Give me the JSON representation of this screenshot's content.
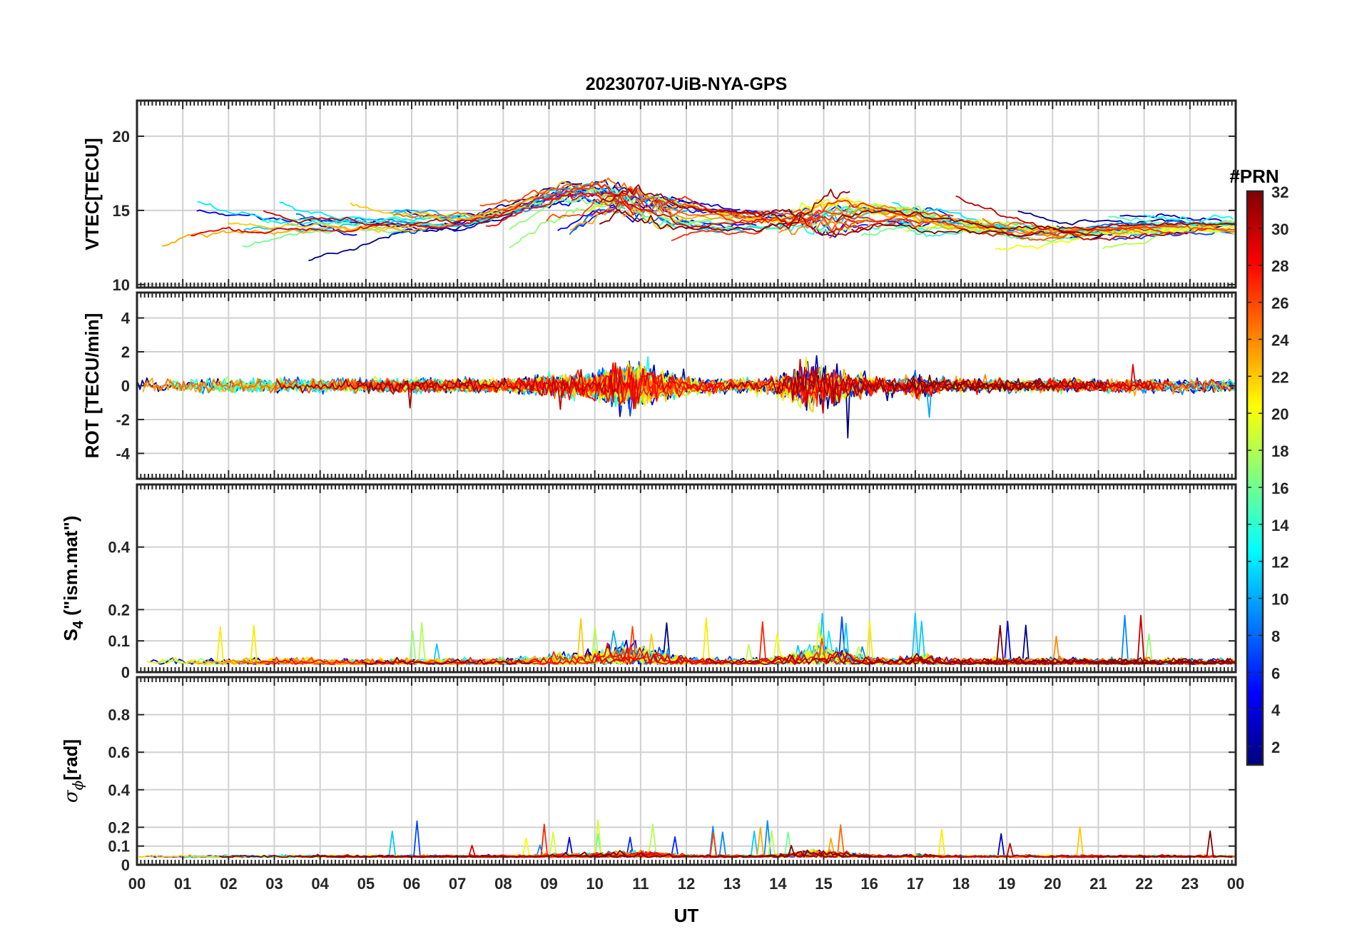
{
  "chart_data": {
    "type": "line",
    "title": "20230707-UiB-NYA-GPS",
    "xlabel": "UT",
    "x_tick_labels": [
      "00",
      "01",
      "02",
      "03",
      "04",
      "05",
      "06",
      "07",
      "08",
      "09",
      "10",
      "11",
      "12",
      "13",
      "14",
      "15",
      "16",
      "17",
      "18",
      "19",
      "20",
      "21",
      "22",
      "23",
      "00"
    ],
    "xlim_hours": [
      0,
      24
    ],
    "grid": true,
    "colorbar": {
      "title": "#PRN",
      "colormap": "jet",
      "range": [
        1,
        32
      ],
      "tick_labels": [
        "2",
        "4",
        "6",
        "8",
        "10",
        "12",
        "14",
        "16",
        "18",
        "20",
        "22",
        "24",
        "26",
        "28",
        "30",
        "32"
      ]
    },
    "panels": [
      {
        "name": "vtec",
        "ylabel_main": "VTEC[TECU]",
        "ylim": [
          9.8,
          22.4
        ],
        "y_tick_labels": [
          "10",
          "15",
          "20"
        ],
        "y_ticks": [
          10,
          15,
          20
        ],
        "baseline": 14.2,
        "spread": 1.3,
        "profile": "vtec"
      },
      {
        "name": "rot",
        "ylabel_main": "ROT [TECU/min]",
        "ylim": [
          -5.5,
          5.5
        ],
        "y_tick_labels": [
          "-4",
          "-2",
          "0",
          "2",
          "4"
        ],
        "y_ticks": [
          -4,
          -2,
          0,
          2,
          4
        ],
        "baseline": 0,
        "spread": 0.45,
        "profile": "rot"
      },
      {
        "name": "s4",
        "ylabel_main": "S",
        "ylabel_sub": "4",
        "ylabel_rest": " (\"ism.mat\")",
        "ylim": [
          0,
          0.6
        ],
        "y_tick_labels": [
          "0",
          "0.1",
          "0.2",
          "0.4"
        ],
        "y_ticks": [
          0,
          0.1,
          0.2,
          0.4
        ],
        "baseline": 0.025,
        "spread": 0.02,
        "profile": "s4"
      },
      {
        "name": "sigma-phi",
        "ylabel_symbol": "σ",
        "ylabel_sub": "ϕ",
        "ylabel_rest": "[rad]",
        "ylim": [
          0,
          1
        ],
        "y_tick_labels": [
          "0",
          "0.1",
          "0.2",
          "0.4",
          "0.6",
          "0.8"
        ],
        "y_ticks": [
          0,
          0.1,
          0.2,
          0.4,
          0.6,
          0.8
        ],
        "baseline": 0.04,
        "spread": 0.012,
        "profile": "sigma"
      }
    ],
    "satellites": [
      1,
      2,
      3,
      4,
      5,
      6,
      7,
      8,
      9,
      10,
      11,
      12,
      13,
      14,
      15,
      16,
      17,
      18,
      19,
      20,
      21,
      22,
      23,
      24,
      25,
      26,
      27,
      28,
      29,
      30,
      31,
      32
    ]
  }
}
